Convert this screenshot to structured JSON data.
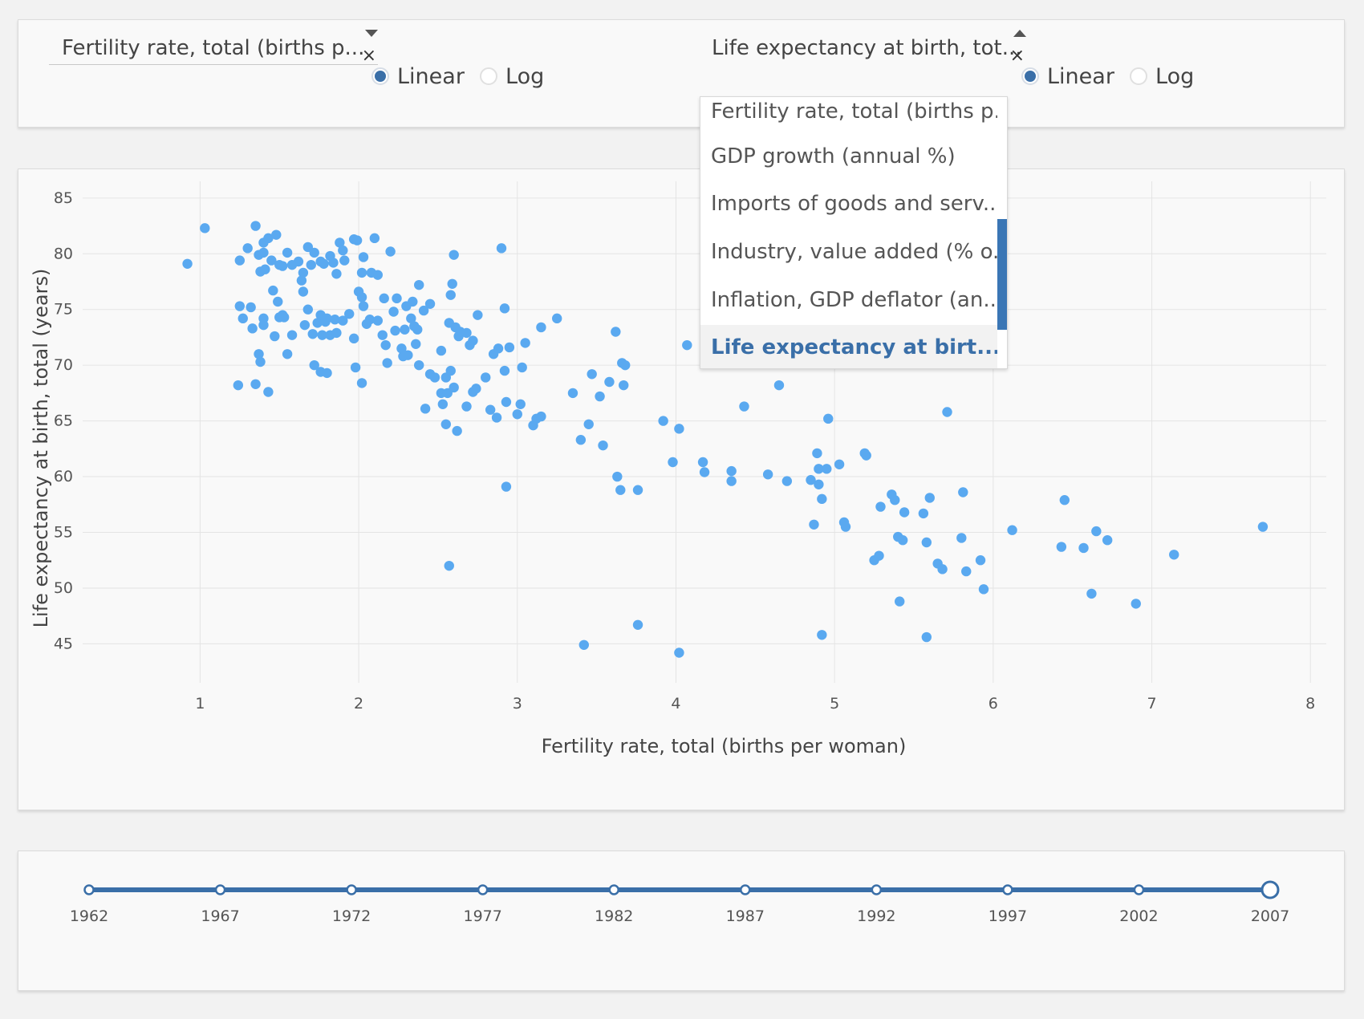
{
  "xaxis_control": {
    "selected": "Fertility rate, total (births p...",
    "clear": "×",
    "scale_options": [
      {
        "label": "Linear",
        "checked": true
      },
      {
        "label": "Log",
        "checked": false
      }
    ]
  },
  "yaxis_control": {
    "selected": "Life expectancy at birth, tot...",
    "clear": "×",
    "scale_options": [
      {
        "label": "Linear",
        "checked": true
      },
      {
        "label": "Log",
        "checked": false
      }
    ],
    "menu_items": [
      {
        "label": "Fertility rate, total (births p...",
        "selected": false
      },
      {
        "label": "GDP growth (annual %)",
        "selected": false
      },
      {
        "label": "Imports of goods and serv...",
        "selected": false
      },
      {
        "label": "Industry, value added (% o...",
        "selected": false
      },
      {
        "label": "Inflation, GDP deflator (an...",
        "selected": false
      },
      {
        "label": "Life expectancy at birt...",
        "selected": true
      }
    ]
  },
  "colors": {
    "point": "#5aa9f0",
    "accent": "#3a6fa8",
    "grid": "#e4e4e4"
  },
  "chart_data": {
    "type": "scatter",
    "xlabel": "Fertility rate, total (births per woman)",
    "ylabel": "Life expectancy at birth, total (years)",
    "xlim": [
      0.3,
      8.1
    ],
    "ylim": [
      41.5,
      86.5
    ],
    "xticks": [
      1,
      2,
      3,
      4,
      5,
      6,
      7,
      8
    ],
    "yticks": [
      45,
      50,
      55,
      60,
      65,
      70,
      75,
      80,
      85
    ],
    "grid": true,
    "points": [
      [
        0.92,
        79.1
      ],
      [
        1.03,
        82.3
      ],
      [
        1.25,
        79.4
      ],
      [
        1.3,
        80.5
      ],
      [
        1.35,
        82.5
      ],
      [
        1.37,
        79.9
      ],
      [
        1.38,
        78.4
      ],
      [
        1.4,
        80.1
      ],
      [
        1.41,
        78.6
      ],
      [
        1.4,
        81.0
      ],
      [
        1.43,
        81.4
      ],
      [
        1.45,
        79.4
      ],
      [
        1.48,
        81.7
      ],
      [
        1.5,
        79.0
      ],
      [
        1.52,
        78.9
      ],
      [
        1.55,
        80.1
      ],
      [
        1.58,
        79.0
      ],
      [
        1.62,
        79.3
      ],
      [
        1.65,
        78.3
      ],
      [
        1.68,
        80.6
      ],
      [
        1.7,
        79.0
      ],
      [
        1.72,
        80.1
      ],
      [
        1.76,
        79.3
      ],
      [
        1.78,
        79.1
      ],
      [
        1.82,
        79.8
      ],
      [
        1.84,
        79.2
      ],
      [
        1.86,
        78.2
      ],
      [
        1.88,
        81.0
      ],
      [
        1.9,
        80.3
      ],
      [
        1.91,
        79.4
      ],
      [
        1.97,
        81.3
      ],
      [
        1.99,
        81.2
      ],
      [
        2.02,
        78.3
      ],
      [
        2.03,
        79.7
      ],
      [
        2.08,
        78.3
      ],
      [
        2.1,
        81.4
      ],
      [
        2.12,
        78.1
      ],
      [
        2.2,
        80.2
      ],
      [
        2.6,
        79.9
      ],
      [
        2.9,
        80.5
      ],
      [
        1.25,
        75.3
      ],
      [
        1.27,
        74.2
      ],
      [
        1.32,
        75.2
      ],
      [
        1.33,
        73.3
      ],
      [
        1.4,
        74.2
      ],
      [
        1.4,
        73.6
      ],
      [
        1.46,
        76.7
      ],
      [
        1.47,
        72.6
      ],
      [
        1.49,
        75.7
      ],
      [
        1.5,
        74.3
      ],
      [
        1.52,
        74.5
      ],
      [
        1.53,
        74.3
      ],
      [
        1.58,
        72.7
      ],
      [
        1.64,
        77.6
      ],
      [
        1.65,
        76.6
      ],
      [
        1.66,
        73.6
      ],
      [
        1.68,
        75.0
      ],
      [
        1.71,
        72.8
      ],
      [
        1.74,
        73.8
      ],
      [
        1.76,
        74.5
      ],
      [
        1.77,
        72.7
      ],
      [
        1.79,
        73.9
      ],
      [
        1.8,
        74.2
      ],
      [
        1.82,
        72.7
      ],
      [
        1.85,
        74.1
      ],
      [
        1.86,
        72.9
      ],
      [
        1.9,
        74.0
      ],
      [
        1.94,
        74.6
      ],
      [
        1.97,
        72.4
      ],
      [
        2.0,
        76.6
      ],
      [
        2.02,
        76.1
      ],
      [
        2.03,
        75.3
      ],
      [
        2.05,
        73.7
      ],
      [
        2.07,
        74.1
      ],
      [
        2.12,
        74.0
      ],
      [
        2.15,
        72.7
      ],
      [
        2.16,
        76.0
      ],
      [
        2.17,
        71.8
      ],
      [
        2.22,
        74.8
      ],
      [
        2.23,
        73.1
      ],
      [
        2.24,
        76.0
      ],
      [
        2.27,
        71.5
      ],
      [
        2.29,
        73.2
      ],
      [
        2.3,
        75.3
      ],
      [
        2.31,
        70.9
      ],
      [
        2.33,
        74.2
      ],
      [
        2.34,
        75.7
      ],
      [
        2.35,
        73.5
      ],
      [
        2.36,
        71.9
      ],
      [
        2.37,
        73.2
      ],
      [
        2.38,
        77.2
      ],
      [
        2.41,
        74.9
      ],
      [
        2.45,
        75.5
      ],
      [
        2.52,
        71.3
      ],
      [
        2.57,
        73.8
      ],
      [
        2.58,
        76.3
      ],
      [
        2.59,
        77.3
      ],
      [
        2.61,
        73.4
      ],
      [
        2.63,
        72.6
      ],
      [
        2.64,
        73.0
      ],
      [
        2.68,
        72.9
      ],
      [
        2.7,
        71.8
      ],
      [
        2.72,
        72.2
      ],
      [
        2.75,
        74.5
      ],
      [
        2.85,
        71.0
      ],
      [
        2.88,
        71.5
      ],
      [
        2.92,
        75.1
      ],
      [
        2.95,
        71.6
      ],
      [
        3.05,
        72.0
      ],
      [
        3.15,
        73.4
      ],
      [
        3.25,
        74.2
      ],
      [
        1.37,
        71.0
      ],
      [
        1.38,
        70.3
      ],
      [
        1.24,
        68.2
      ],
      [
        1.35,
        68.3
      ],
      [
        1.43,
        67.6
      ],
      [
        1.55,
        71.0
      ],
      [
        1.72,
        70.0
      ],
      [
        1.76,
        69.4
      ],
      [
        1.8,
        69.3
      ],
      [
        1.98,
        69.8
      ],
      [
        2.02,
        68.4
      ],
      [
        2.18,
        70.2
      ],
      [
        2.28,
        70.8
      ],
      [
        2.38,
        70.0
      ],
      [
        2.45,
        69.2
      ],
      [
        2.48,
        68.9
      ],
      [
        2.55,
        68.9
      ],
      [
        2.58,
        69.5
      ],
      [
        2.6,
        68.0
      ],
      [
        2.52,
        67.5
      ],
      [
        2.56,
        67.5
      ],
      [
        2.42,
        66.1
      ],
      [
        2.53,
        66.5
      ],
      [
        2.62,
        64.1
      ],
      [
        2.55,
        64.7
      ],
      [
        2.68,
        66.3
      ],
      [
        2.72,
        67.6
      ],
      [
        2.74,
        67.9
      ],
      [
        2.8,
        68.9
      ],
      [
        2.83,
        66.0
      ],
      [
        2.87,
        65.3
      ],
      [
        2.92,
        69.5
      ],
      [
        2.93,
        66.7
      ],
      [
        3.02,
        66.5
      ],
      [
        3.03,
        69.8
      ],
      [
        3.0,
        65.6
      ],
      [
        3.1,
        64.6
      ],
      [
        3.12,
        65.2
      ],
      [
        3.15,
        65.4
      ],
      [
        3.35,
        67.5
      ],
      [
        3.4,
        63.3
      ],
      [
        3.45,
        64.7
      ],
      [
        3.47,
        69.2
      ],
      [
        3.52,
        67.2
      ],
      [
        3.54,
        62.8
      ],
      [
        3.58,
        68.5
      ],
      [
        3.62,
        73.0
      ],
      [
        3.66,
        70.2
      ],
      [
        3.68,
        70.0
      ],
      [
        3.67,
        68.2
      ],
      [
        3.63,
        60.0
      ],
      [
        3.65,
        58.8
      ],
      [
        3.76,
        58.8
      ],
      [
        3.92,
        65.0
      ],
      [
        3.98,
        61.3
      ],
      [
        4.02,
        64.3
      ],
      [
        4.07,
        71.8
      ],
      [
        4.17,
        61.3
      ],
      [
        4.18,
        60.4
      ],
      [
        4.35,
        60.5
      ],
      [
        4.35,
        59.6
      ],
      [
        4.43,
        66.3
      ],
      [
        4.58,
        60.2
      ],
      [
        4.65,
        68.2
      ],
      [
        4.7,
        59.6
      ],
      [
        2.93,
        59.1
      ],
      [
        2.57,
        52.0
      ],
      [
        3.42,
        44.9
      ],
      [
        3.76,
        46.7
      ],
      [
        4.02,
        44.2
      ],
      [
        4.85,
        59.7
      ],
      [
        4.87,
        55.7
      ],
      [
        4.89,
        62.1
      ],
      [
        4.9,
        60.7
      ],
      [
        4.9,
        59.3
      ],
      [
        4.92,
        58.0
      ],
      [
        4.95,
        60.7
      ],
      [
        4.96,
        65.2
      ],
      [
        5.03,
        61.1
      ],
      [
        5.06,
        55.9
      ],
      [
        5.07,
        55.5
      ],
      [
        5.19,
        62.1
      ],
      [
        5.2,
        61.9
      ],
      [
        5.25,
        52.5
      ],
      [
        5.28,
        52.9
      ],
      [
        5.29,
        57.3
      ],
      [
        5.36,
        58.4
      ],
      [
        5.38,
        57.9
      ],
      [
        5.4,
        54.6
      ],
      [
        5.41,
        48.8
      ],
      [
        5.43,
        54.3
      ],
      [
        5.44,
        56.8
      ],
      [
        5.56,
        56.7
      ],
      [
        5.58,
        54.1
      ],
      [
        5.58,
        45.6
      ],
      [
        5.6,
        58.1
      ],
      [
        5.65,
        52.2
      ],
      [
        5.68,
        51.7
      ],
      [
        5.71,
        65.8
      ],
      [
        5.8,
        54.5
      ],
      [
        5.81,
        58.6
      ],
      [
        5.83,
        51.5
      ],
      [
        5.92,
        52.5
      ],
      [
        5.94,
        49.9
      ],
      [
        6.12,
        55.2
      ],
      [
        6.43,
        53.7
      ],
      [
        6.45,
        57.9
      ],
      [
        6.57,
        53.6
      ],
      [
        6.62,
        49.5
      ],
      [
        6.65,
        55.1
      ],
      [
        6.72,
        54.3
      ],
      [
        6.9,
        48.6
      ],
      [
        7.14,
        53.0
      ],
      [
        7.7,
        55.5
      ],
      [
        4.92,
        45.8
      ],
      [
        4.47,
        71.6
      ]
    ]
  },
  "timeline": {
    "marks": [
      "1962",
      "1967",
      "1972",
      "1977",
      "1982",
      "1987",
      "1992",
      "1997",
      "2002",
      "2007"
    ],
    "selected": "2007"
  }
}
